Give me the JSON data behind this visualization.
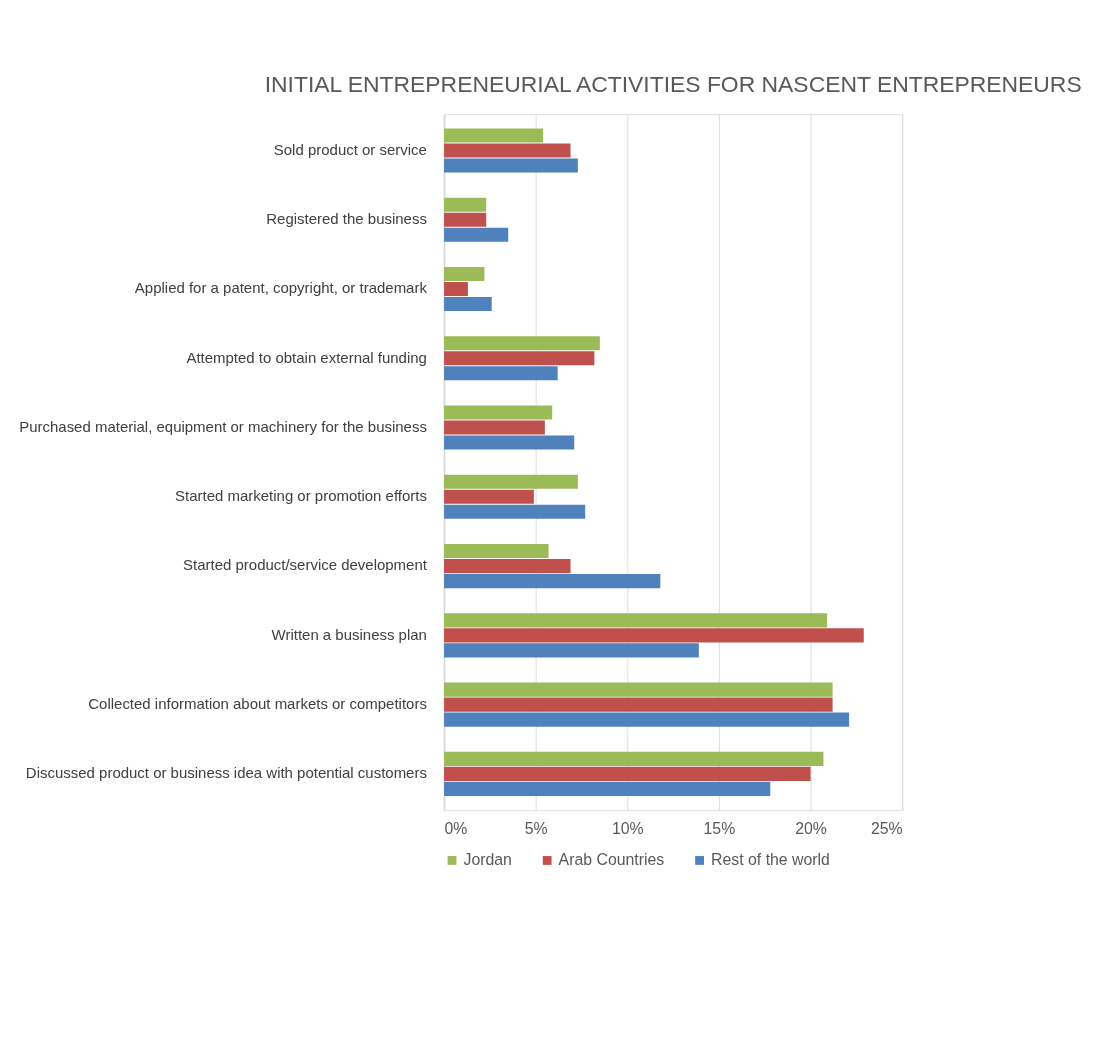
{
  "chart_data": {
    "type": "bar",
    "orientation": "horizontal",
    "title": "INITIAL ENTREPRENEURIAL ACTIVITIES FOR NASCENT ENTREPRENEURS",
    "categories": [
      "Sold product or service",
      "Registered the business",
      "Applied for a patent, copyright, or trademark",
      "Attempted to obtain external funding",
      "Purchased material, equipment or machinery for the business",
      "Started marketing or promotion efforts",
      "Started product/service development",
      "Written a business plan",
      "Collected information about markets or competitors",
      "Discussed product or business idea with potential customers"
    ],
    "series": [
      {
        "name": "Jordan",
        "color": "#9bbb59",
        "values": [
          5.4,
          2.3,
          2.2,
          8.5,
          5.9,
          7.3,
          5.7,
          20.9,
          21.2,
          20.7
        ]
      },
      {
        "name": "Arab Countries",
        "color": "#c0504d",
        "values": [
          6.9,
          2.3,
          1.3,
          8.2,
          5.5,
          4.9,
          6.9,
          22.9,
          21.2,
          20.0
        ]
      },
      {
        "name": "Rest of the world",
        "color": "#4f81bd",
        "values": [
          7.3,
          3.5,
          2.6,
          6.2,
          7.1,
          7.7,
          11.8,
          13.9,
          22.1,
          17.8
        ]
      }
    ],
    "xlim": [
      0,
      25
    ],
    "xticks": [
      {
        "value": 0,
        "label": "0%"
      },
      {
        "value": 5,
        "label": "5%"
      },
      {
        "value": 10,
        "label": "10%"
      },
      {
        "value": 15,
        "label": "15%"
      },
      {
        "value": 20,
        "label": "20%"
      },
      {
        "value": 25,
        "label": "25%"
      }
    ],
    "grid": "x",
    "legend": "bottom"
  }
}
